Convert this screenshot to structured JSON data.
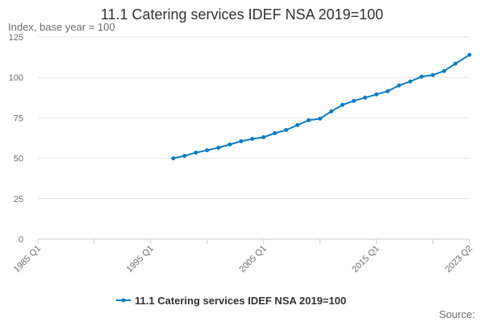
{
  "chart_data": {
    "type": "line",
    "title": "11.1 Catering services IDEF NSA 2019=100",
    "ylabel": "Index, base year = 100",
    "xlabel": "",
    "ylim": [
      0,
      125
    ],
    "yticks": [
      "0",
      "25",
      "50",
      "75",
      "100",
      "125"
    ],
    "xlim": [
      "1985 Q1",
      "2023 Q2"
    ],
    "xticks": [
      "1985 Q1",
      "1995 Q1",
      "2005 Q1",
      "2015 Q1",
      "2023 Q2"
    ],
    "grid": true,
    "legend_position": "bottom",
    "source_label": "Source:",
    "series": [
      {
        "name": "11.1 Catering services IDEF NSA 2019=100",
        "color": "#0f7cc2",
        "x": [
          "1997 Q1",
          "1998 Q1",
          "1999 Q1",
          "2000 Q1",
          "2001 Q1",
          "2002 Q1",
          "2003 Q1",
          "2004 Q1",
          "2005 Q1",
          "2006 Q1",
          "2007 Q1",
          "2008 Q1",
          "2009 Q1",
          "2010 Q1",
          "2011 Q1",
          "2012 Q1",
          "2013 Q1",
          "2014 Q1",
          "2015 Q1",
          "2016 Q1",
          "2017 Q1",
          "2018 Q1",
          "2019 Q1",
          "2020 Q1",
          "2021 Q1",
          "2022 Q1",
          "2023 Q2"
        ],
        "values": [
          50,
          51.5,
          53.5,
          55,
          56.5,
          58.5,
          60.5,
          62,
          63,
          65.5,
          67.5,
          70.5,
          73.5,
          74.5,
          79,
          83,
          85.5,
          87.5,
          89.5,
          91.5,
          95,
          97.5,
          100.5,
          101.5,
          104,
          108.5,
          114
        ]
      }
    ]
  }
}
